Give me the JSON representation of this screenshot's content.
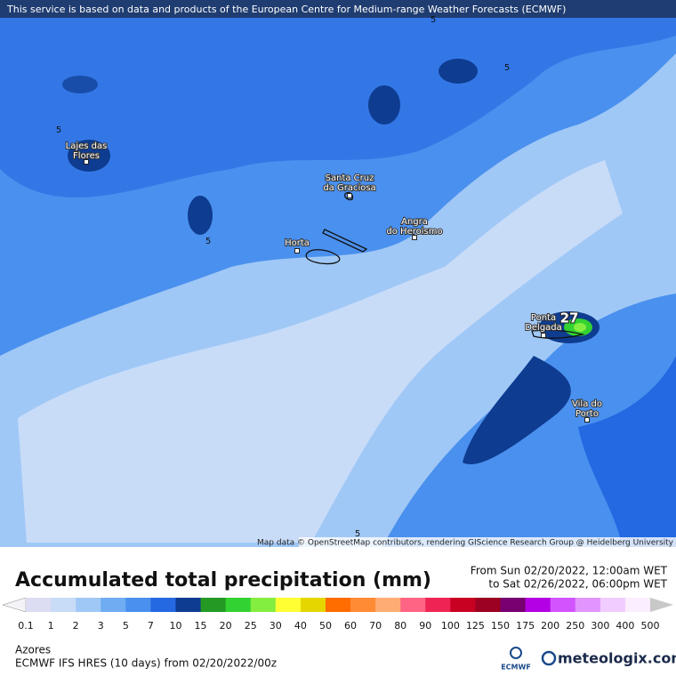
{
  "banner": "This service is based on data and products of the European Centre for Medium-range Weather Forecasts (ECMWF)",
  "map": {
    "places": [
      {
        "lines": [
          "Lajes das",
          "Flores"
        ]
      },
      {
        "lines": [
          "Santa Cruz",
          "da Graciosa"
        ]
      },
      {
        "lines": [
          "Horta"
        ]
      },
      {
        "lines": [
          "Angra",
          "do Heroismo"
        ]
      },
      {
        "lines": [
          "Ponta",
          "Delgada"
        ]
      },
      {
        "lines": [
          "Vila do",
          "Porto"
        ]
      }
    ],
    "contour_labels": [
      "5",
      "5",
      "5",
      "5",
      "5"
    ],
    "max_label": "27",
    "attribution": "Map data © OpenStreetMap contributors, rendering GIScience Research Group @ Heidelberg University"
  },
  "legend": {
    "title": "Accumulated total precipitation (mm)",
    "period_from": "From Sun 02/20/2022, 12:00am WET",
    "period_to": "to Sat 02/26/2022, 06:00pm WET",
    "levels": [
      0.1,
      1,
      2,
      3,
      5,
      7,
      10,
      15,
      20,
      25,
      30,
      40,
      50,
      60,
      70,
      80,
      90,
      100,
      125,
      150,
      175,
      200,
      250,
      300,
      400,
      500
    ],
    "below_color": "#f4f4f8",
    "colors": [
      "#dcdcf2",
      "#c8dcf8",
      "#a0c8f6",
      "#70acf2",
      "#4a90ee",
      "#2468e2",
      "#0e3c90",
      "#249a24",
      "#32d232",
      "#84ee40",
      "#ffff34",
      "#e6d600",
      "#ff6c00",
      "#ff8c34",
      "#ffac74",
      "#ff6484",
      "#f02454",
      "#c80022",
      "#9c0022",
      "#780070",
      "#b400e4",
      "#d254ff",
      "#e294ff",
      "#f0ccff",
      "#faeeff"
    ],
    "above_color": "#c8c8c8"
  },
  "footer": {
    "region": "Azores",
    "model": "ECMWF IFS HRES (10 days) from 02/20/2022/00z",
    "ecmwf": "ECMWF",
    "brand": "meteologix.com"
  }
}
